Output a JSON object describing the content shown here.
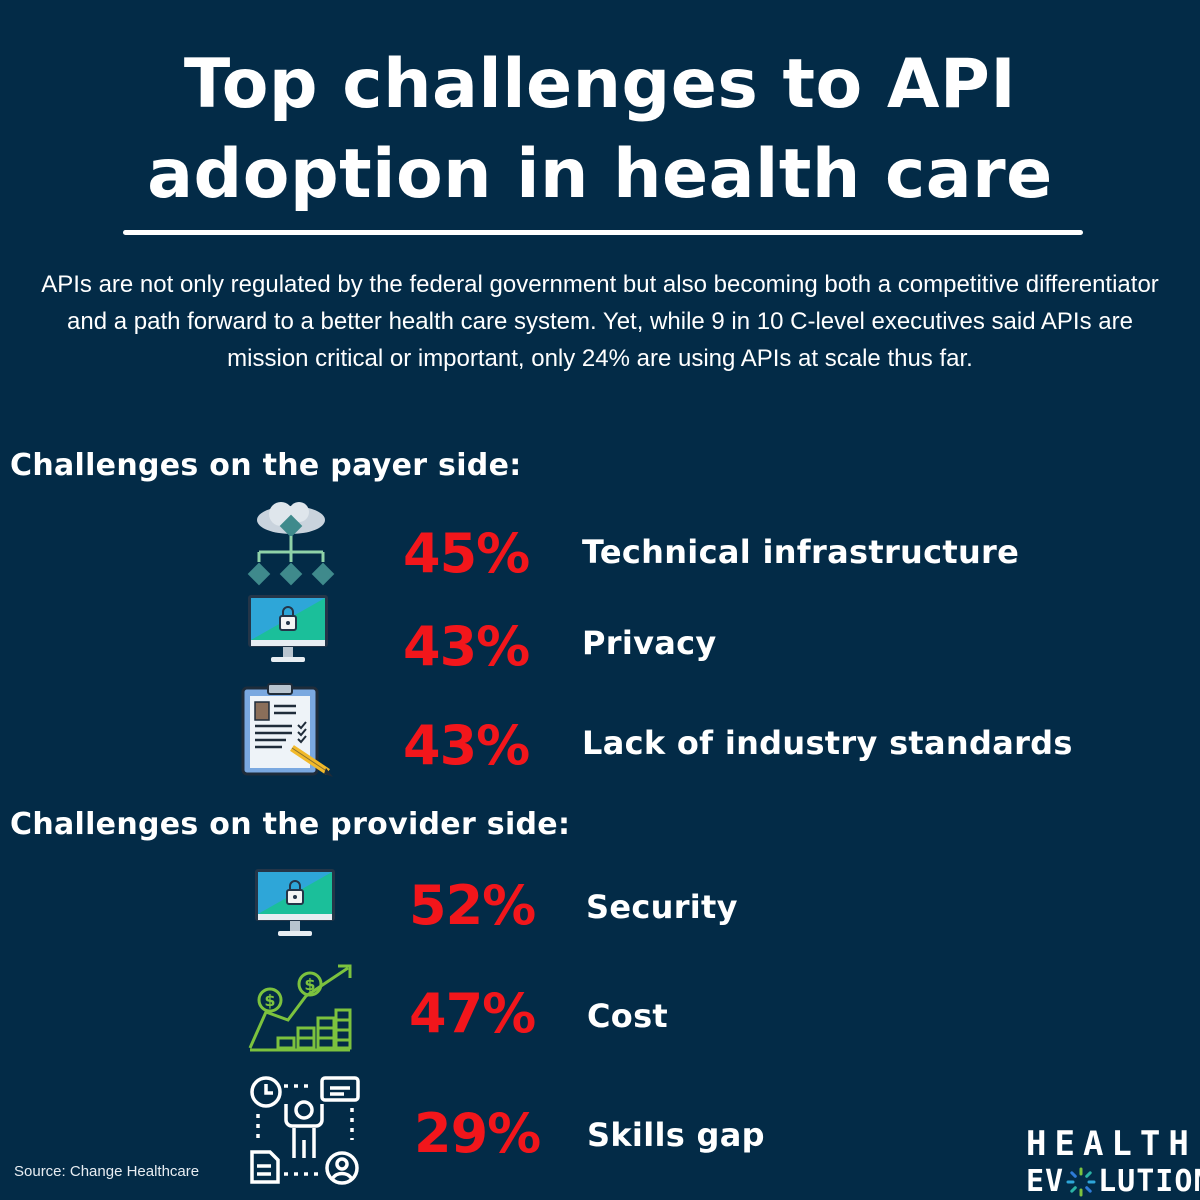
{
  "title": "Top challenges to API adoption in health care",
  "intro": "APIs are not only regulated by the federal government but also becoming both a competitive differentiator and a path forward to a better health care system. Yet, while 9 in 10 C-level executives said APIs are mission critical or important, only 24% are using APIs at scale thus far.",
  "payer": {
    "heading": "Challenges on the payer side:",
    "items": [
      {
        "pct": "45%",
        "label": "Technical infrastructure",
        "icon": "cloud-network-icon"
      },
      {
        "pct": "43%",
        "label": "Privacy",
        "icon": "lock-monitor-icon"
      },
      {
        "pct": "43%",
        "label": "Lack of industry standards",
        "icon": "clipboard-checklist-icon"
      }
    ]
  },
  "provider": {
    "heading": "Challenges on the provider side:",
    "items": [
      {
        "pct": "52%",
        "label": "Security",
        "icon": "lock-monitor-icon"
      },
      {
        "pct": "47%",
        "label": "Cost",
        "icon": "money-growth-icon"
      },
      {
        "pct": "29%",
        "label": "Skills gap",
        "icon": "person-skills-icon"
      }
    ]
  },
  "source": "Source: Change Healthcare",
  "logo": {
    "line1": "HEALTH",
    "line2_left": "EV",
    "line2_right": "LUTION"
  },
  "colors": {
    "background": "#032b47",
    "accent": "#f2161b",
    "text": "#ffffff"
  },
  "chart_data": {
    "type": "table",
    "title": "Top challenges to API adoption in health care",
    "groups": [
      {
        "name": "Challenges on the payer side:",
        "categories": [
          "Technical infrastructure",
          "Privacy",
          "Lack of industry standards"
        ],
        "values": [
          45,
          43,
          43
        ]
      },
      {
        "name": "Challenges on the provider side:",
        "categories": [
          "Security",
          "Cost",
          "Skills gap"
        ],
        "values": [
          52,
          47,
          29
        ]
      }
    ],
    "unit": "%"
  }
}
